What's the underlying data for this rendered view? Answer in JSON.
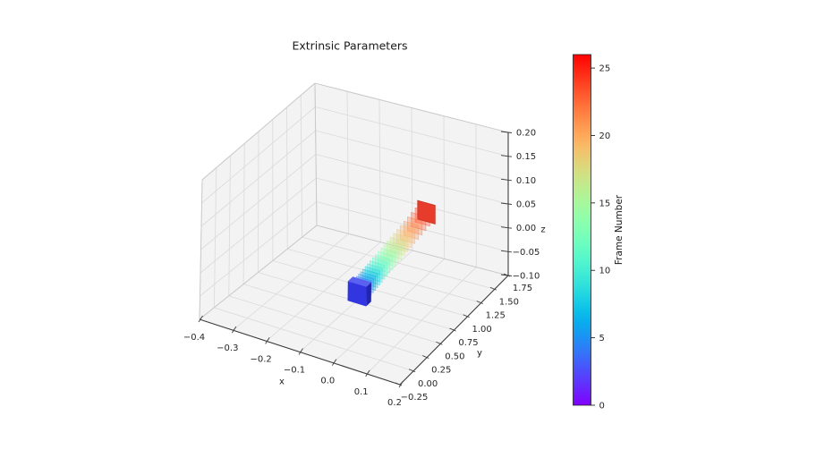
{
  "title": "Extrinsic Parameters",
  "chart_data": {
    "type": "scatter",
    "projection": "3d",
    "title": "Extrinsic Parameters",
    "xlabel": "x",
    "ylabel": "y",
    "zlabel": "z",
    "xlim": [
      -0.4,
      0.2
    ],
    "ylim": [
      -0.25,
      1.75
    ],
    "zlim": [
      -0.1,
      0.2
    ],
    "grid": true,
    "xticks": {
      "values": [
        -0.4,
        -0.3,
        -0.2,
        -0.1,
        0.0,
        0.1,
        0.2
      ],
      "labels": [
        "−0.4",
        "−0.3",
        "−0.2",
        "−0.1",
        "0.0",
        "0.1",
        "0.2"
      ]
    },
    "yticks": {
      "values": [
        -0.25,
        0.0,
        0.25,
        0.5,
        0.75,
        1.0,
        1.25,
        1.5,
        1.75
      ],
      "labels": [
        "−0.25",
        "0.00",
        "0.25",
        "0.50",
        "0.75",
        "1.00",
        "1.25",
        "1.50",
        "1.75"
      ]
    },
    "zticks": {
      "values": [
        -0.1,
        -0.05,
        0.0,
        0.05,
        0.1,
        0.15,
        0.2
      ],
      "labels": [
        "−0.10",
        "−0.05",
        "0.00",
        "0.05",
        "0.10",
        "0.15",
        "0.20"
      ]
    },
    "colorbar": {
      "label": "Frame Number",
      "vmin": 0,
      "vmax": 26,
      "colormap": "rainbow",
      "ticks": [
        0,
        5,
        10,
        15,
        20,
        25
      ],
      "tick_labels": [
        "0",
        "5",
        "10",
        "15",
        "20",
        "25"
      ]
    },
    "colors": {
      "pane": "#f3f3f3",
      "grid": "#dcdcdc",
      "edge": "#c8c8c8",
      "spine": "#3c3c3c",
      "text": "#262626",
      "start_marker": "#3136e0",
      "start_marker_top": "#5a60f0",
      "start_marker_side": "#2226ae",
      "end_marker": "#e73c2c",
      "end_marker_edge": "#c93020"
    },
    "frames": [
      {
        "frame": 0,
        "x": 0.0,
        "y": 0.17,
        "z": 0.0
      },
      {
        "frame": 1,
        "x": 0.0005,
        "y": 0.196,
        "z": 0.0011
      },
      {
        "frame": 2,
        "x": 0.0009,
        "y": 0.223,
        "z": 0.0023
      },
      {
        "frame": 3,
        "x": 0.0015,
        "y": 0.253,
        "z": 0.0036
      },
      {
        "frame": 4,
        "x": 0.002,
        "y": 0.283,
        "z": 0.005
      },
      {
        "frame": 5,
        "x": 0.0026,
        "y": 0.316,
        "z": 0.0064
      },
      {
        "frame": 6,
        "x": 0.0032,
        "y": 0.35,
        "z": 0.0079
      },
      {
        "frame": 7,
        "x": 0.0038,
        "y": 0.386,
        "z": 0.0095
      },
      {
        "frame": 8,
        "x": 0.0044,
        "y": 0.423,
        "z": 0.0111
      },
      {
        "frame": 9,
        "x": 0.0051,
        "y": 0.462,
        "z": 0.0128
      },
      {
        "frame": 10,
        "x": 0.0058,
        "y": 0.503,
        "z": 0.0146
      },
      {
        "frame": 11,
        "x": 0.0066,
        "y": 0.545,
        "z": 0.0165
      },
      {
        "frame": 12,
        "x": 0.0074,
        "y": 0.589,
        "z": 0.0184
      },
      {
        "frame": 13,
        "x": 0.0082,
        "y": 0.635,
        "z": 0.0204
      },
      {
        "frame": 14,
        "x": 0.009,
        "y": 0.682,
        "z": 0.0225
      },
      {
        "frame": 15,
        "x": 0.0098,
        "y": 0.731,
        "z": 0.0246
      },
      {
        "frame": 16,
        "x": 0.0107,
        "y": 0.781,
        "z": 0.0268
      },
      {
        "frame": 17,
        "x": 0.0116,
        "y": 0.834,
        "z": 0.0291
      },
      {
        "frame": 18,
        "x": 0.0126,
        "y": 0.887,
        "z": 0.0315
      },
      {
        "frame": 19,
        "x": 0.0136,
        "y": 0.943,
        "z": 0.0339
      },
      {
        "frame": 20,
        "x": 0.0146,
        "y": 1.0,
        "z": 0.0364
      },
      {
        "frame": 21,
        "x": 0.0156,
        "y": 1.059,
        "z": 0.039
      },
      {
        "frame": 22,
        "x": 0.0167,
        "y": 1.119,
        "z": 0.0416
      },
      {
        "frame": 23,
        "x": 0.0177,
        "y": 1.181,
        "z": 0.0443
      },
      {
        "frame": 24,
        "x": 0.0189,
        "y": 1.245,
        "z": 0.0471
      },
      {
        "frame": 25,
        "x": 0.02,
        "y": 1.31,
        "z": 0.05
      }
    ]
  }
}
